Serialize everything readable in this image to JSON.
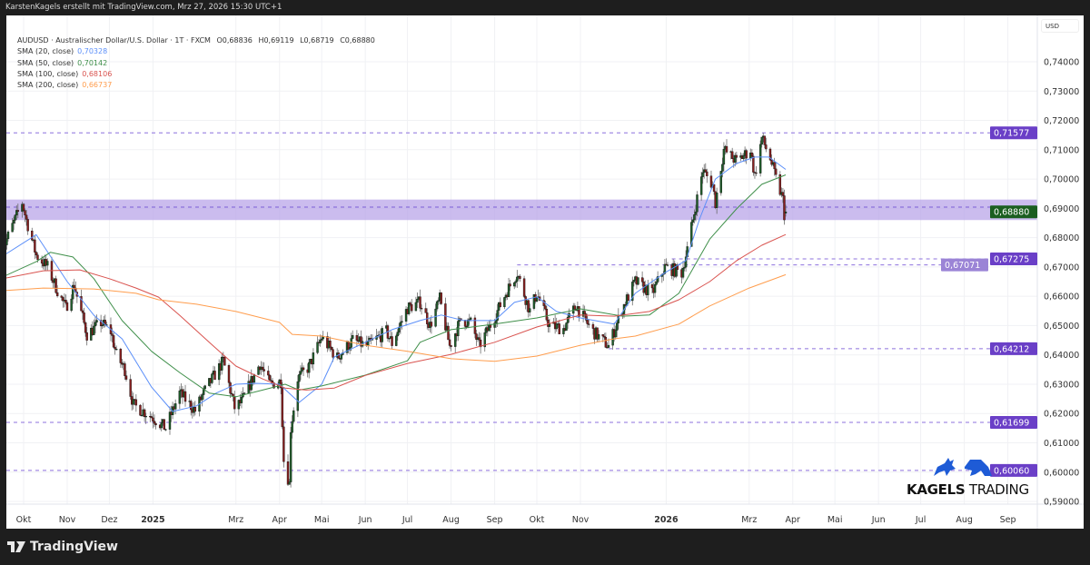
{
  "header": {
    "attribution": "KarstenKagels erstellt mit TradingView.com, Mrz 27, 2026 15:30 UTC+1"
  },
  "legend": {
    "symbol_line": "AUDUSD · Australischer Dollar/U.S. Dollar · 1T · FXCM",
    "open": "O0,68836",
    "high": "H0,69119",
    "low": "L0,68719",
    "close": "C0,68880",
    "sma": [
      {
        "label": "SMA (20, close)",
        "value": "0,70328",
        "color": "#5b8ff9"
      },
      {
        "label": "SMA (50, close)",
        "value": "0,70142",
        "color": "#3f8f4a"
      },
      {
        "label": "SMA (100, close)",
        "value": "0,68106",
        "color": "#d9534f"
      },
      {
        "label": "SMA (200, close)",
        "value": "0,66737",
        "color": "#ff9d4d"
      }
    ]
  },
  "axis": {
    "currency": "USD"
  },
  "footer": {
    "brand": "TradingView"
  },
  "watermark": {
    "bold": "KAGELS",
    "light": "TRADING",
    "color": "#1e5bd6"
  },
  "chart_data": {
    "type": "candlestick",
    "symbol": "AUDUSD",
    "timeframe": "1T",
    "last_candle": {
      "date": "2026-03-27",
      "open": 0.68836,
      "high": 0.69119,
      "low": 0.68719,
      "close": 0.6888
    },
    "ylim": [
      0.588,
      0.755
    ],
    "xlim": [
      "2024-09-14",
      "2026-09-25"
    ],
    "grid": true,
    "y_ticks": [
      "0,74000",
      "0,73000",
      "0,72000",
      "0,71000",
      "0,70000",
      "0,69000",
      "0,68000",
      "0,67000",
      "0,66000",
      "0,65000",
      "0,64000",
      "0,63000",
      "0,62000",
      "0,61000",
      "0,60000",
      "0,59000"
    ],
    "x_ticks": [
      {
        "label": "Okt",
        "date": "2024-10-01"
      },
      {
        "label": "Nov",
        "date": "2024-11-01"
      },
      {
        "label": "Dez",
        "date": "2024-12-01"
      },
      {
        "label": "2025",
        "date": "2025-01-01",
        "bold": true
      },
      {
        "label": "Mrz",
        "date": "2025-03-01"
      },
      {
        "label": "Apr",
        "date": "2025-04-01"
      },
      {
        "label": "Mai",
        "date": "2025-05-01"
      },
      {
        "label": "Jun",
        "date": "2025-06-01"
      },
      {
        "label": "Jul",
        "date": "2025-07-01"
      },
      {
        "label": "Aug",
        "date": "2025-08-01"
      },
      {
        "label": "Sep",
        "date": "2025-09-01"
      },
      {
        "label": "Okt",
        "date": "2025-10-01"
      },
      {
        "label": "Nov",
        "date": "2025-11-01"
      },
      {
        "label": "2026",
        "date": "2026-01-01",
        "bold": true
      },
      {
        "label": "Mrz",
        "date": "2026-03-01"
      },
      {
        "label": "Apr",
        "date": "2026-04-01"
      },
      {
        "label": "Mai",
        "date": "2026-05-01"
      },
      {
        "label": "Jun",
        "date": "2026-06-01"
      },
      {
        "label": "Jul",
        "date": "2026-07-01"
      },
      {
        "label": "Aug",
        "date": "2026-08-01"
      },
      {
        "label": "Sep",
        "date": "2026-09-01"
      }
    ],
    "close_path": [
      [
        "2024-09-16",
        0.676
      ],
      [
        "2024-09-23",
        0.684
      ],
      [
        "2024-09-30",
        0.692
      ],
      [
        "2024-10-03",
        0.686
      ],
      [
        "2024-10-10",
        0.674
      ],
      [
        "2024-10-18",
        0.67
      ],
      [
        "2024-10-25",
        0.662
      ],
      [
        "2024-10-31",
        0.656
      ],
      [
        "2024-11-06",
        0.664
      ],
      [
        "2024-11-08",
        0.66
      ],
      [
        "2024-11-15",
        0.647
      ],
      [
        "2024-11-25",
        0.651
      ],
      [
        "2024-12-02",
        0.648
      ],
      [
        "2024-12-06",
        0.64
      ],
      [
        "2024-12-12",
        0.635
      ],
      [
        "2024-12-18",
        0.623
      ],
      [
        "2024-12-31",
        0.619
      ],
      [
        "2025-01-10",
        0.615
      ],
      [
        "2025-01-20",
        0.627
      ],
      [
        "2025-01-31",
        0.621
      ],
      [
        "2025-02-06",
        0.627
      ],
      [
        "2025-02-20",
        0.638
      ],
      [
        "2025-02-28",
        0.622
      ],
      [
        "2025-03-05",
        0.624
      ],
      [
        "2025-03-18",
        0.637
      ],
      [
        "2025-03-25",
        0.63
      ],
      [
        "2025-04-02",
        0.631
      ],
      [
        "2025-04-04",
        0.604
      ],
      [
        "2025-04-08",
        0.596
      ],
      [
        "2025-04-09",
        0.615
      ],
      [
        "2025-04-14",
        0.632
      ],
      [
        "2025-04-22",
        0.636
      ],
      [
        "2025-05-01",
        0.646
      ],
      [
        "2025-05-12",
        0.639
      ],
      [
        "2025-05-23",
        0.645
      ],
      [
        "2025-06-02",
        0.643
      ],
      [
        "2025-06-16",
        0.648
      ],
      [
        "2025-06-20",
        0.644
      ],
      [
        "2025-07-01",
        0.656
      ],
      [
        "2025-07-10",
        0.658
      ],
      [
        "2025-07-17",
        0.65
      ],
      [
        "2025-07-24",
        0.659
      ],
      [
        "2025-07-31",
        0.643
      ],
      [
        "2025-08-08",
        0.652
      ],
      [
        "2025-08-15",
        0.651
      ],
      [
        "2025-08-21",
        0.643
      ],
      [
        "2025-09-01",
        0.653
      ],
      [
        "2025-09-10",
        0.662
      ],
      [
        "2025-09-17",
        0.668
      ],
      [
        "2025-09-26",
        0.655
      ],
      [
        "2025-10-01",
        0.661
      ],
      [
        "2025-10-10",
        0.65
      ],
      [
        "2025-10-20",
        0.649
      ],
      [
        "2025-10-29",
        0.657
      ],
      [
        "2025-11-04",
        0.652
      ],
      [
        "2025-11-10",
        0.648
      ],
      [
        "2025-11-21",
        0.643
      ],
      [
        "2025-12-01",
        0.656
      ],
      [
        "2025-12-10",
        0.665
      ],
      [
        "2025-12-22",
        0.661
      ],
      [
        "2025-12-31",
        0.67
      ],
      [
        "2026-01-12",
        0.668
      ],
      [
        "2026-01-16",
        0.676
      ],
      [
        "2026-01-22",
        0.691
      ],
      [
        "2026-01-27",
        0.703
      ],
      [
        "2026-02-03",
        0.698
      ],
      [
        "2026-02-05",
        0.692
      ],
      [
        "2026-02-11",
        0.71
      ],
      [
        "2026-02-20",
        0.706
      ],
      [
        "2026-03-02",
        0.71
      ],
      [
        "2026-03-05",
        0.701
      ],
      [
        "2026-03-10",
        0.714
      ],
      [
        "2026-03-16",
        0.707
      ],
      [
        "2026-03-20",
        0.7
      ],
      [
        "2026-03-25",
        0.693
      ],
      [
        "2026-03-26",
        0.688
      ]
    ],
    "sma_series": [
      {
        "name": "SMA (20, close)",
        "color": "#5b8ff9",
        "points": [
          [
            "2024-09-16",
            0.6737
          ],
          [
            "2024-10-10",
            0.681
          ],
          [
            "2024-11-01",
            0.665
          ],
          [
            "2024-11-20",
            0.6535
          ],
          [
            "2024-12-10",
            0.6455
          ],
          [
            "2024-12-31",
            0.629
          ],
          [
            "2025-01-15",
            0.6207
          ],
          [
            "2025-02-01",
            0.6226
          ],
          [
            "2025-02-15",
            0.627
          ],
          [
            "2025-03-01",
            0.63
          ],
          [
            "2025-03-15",
            0.6303
          ],
          [
            "2025-04-01",
            0.63
          ],
          [
            "2025-04-15",
            0.6238
          ],
          [
            "2025-05-01",
            0.63
          ],
          [
            "2025-05-10",
            0.6393
          ],
          [
            "2025-06-01",
            0.6443
          ],
          [
            "2025-06-20",
            0.6486
          ],
          [
            "2025-07-10",
            0.6517
          ],
          [
            "2025-07-25",
            0.6536
          ],
          [
            "2025-08-10",
            0.6517
          ],
          [
            "2025-09-01",
            0.6517
          ],
          [
            "2025-09-15",
            0.6579
          ],
          [
            "2025-10-01",
            0.6598
          ],
          [
            "2025-10-15",
            0.6548
          ],
          [
            "2025-11-01",
            0.6526
          ],
          [
            "2025-11-25",
            0.6505
          ],
          [
            "2025-12-10",
            0.661
          ],
          [
            "2025-12-31",
            0.668
          ],
          [
            "2026-01-15",
            0.6722
          ],
          [
            "2026-01-25",
            0.6867
          ],
          [
            "2026-02-05",
            0.7
          ],
          [
            "2026-02-20",
            0.7053
          ],
          [
            "2026-03-05",
            0.7075
          ],
          [
            "2026-03-15",
            0.7075
          ],
          [
            "2026-03-27",
            0.70328
          ]
        ]
      },
      {
        "name": "SMA (50, close)",
        "color": "#3f8f4a",
        "points": [
          [
            "2024-09-16",
            0.6666
          ],
          [
            "2024-10-10",
            0.6718
          ],
          [
            "2024-10-20",
            0.675
          ],
          [
            "2024-11-05",
            0.6734
          ],
          [
            "2024-11-20",
            0.666
          ],
          [
            "2024-12-10",
            0.6517
          ],
          [
            "2024-12-31",
            0.6412
          ],
          [
            "2025-01-20",
            0.634
          ],
          [
            "2025-02-10",
            0.627
          ],
          [
            "2025-03-01",
            0.6257
          ],
          [
            "2025-03-20",
            0.628
          ],
          [
            "2025-04-05",
            0.63
          ],
          [
            "2025-04-15",
            0.628
          ],
          [
            "2025-05-01",
            0.6294
          ],
          [
            "2025-06-01",
            0.6331
          ],
          [
            "2025-07-01",
            0.638
          ],
          [
            "2025-07-10",
            0.6443
          ],
          [
            "2025-08-01",
            0.6486
          ],
          [
            "2025-09-01",
            0.6505
          ],
          [
            "2025-10-01",
            0.6526
          ],
          [
            "2025-11-01",
            0.6557
          ],
          [
            "2025-12-01",
            0.6532
          ],
          [
            "2025-12-20",
            0.6536
          ],
          [
            "2026-01-10",
            0.661
          ],
          [
            "2026-02-01",
            0.6795
          ],
          [
            "2026-02-20",
            0.6898
          ],
          [
            "2026-03-10",
            0.6982
          ],
          [
            "2026-03-27",
            0.70142
          ]
        ]
      },
      {
        "name": "SMA (100, close)",
        "color": "#d9534f",
        "points": [
          [
            "2024-09-16",
            0.666
          ],
          [
            "2024-10-15",
            0.6687
          ],
          [
            "2024-11-10",
            0.669
          ],
          [
            "2024-12-01",
            0.666
          ],
          [
            "2024-12-20",
            0.6628
          ],
          [
            "2025-01-05",
            0.6597
          ],
          [
            "2025-01-20",
            0.6535
          ],
          [
            "2025-02-10",
            0.6443
          ],
          [
            "2025-03-01",
            0.6362
          ],
          [
            "2025-03-20",
            0.6318
          ],
          [
            "2025-04-05",
            0.6287
          ],
          [
            "2025-04-20",
            0.628
          ],
          [
            "2025-05-10",
            0.6287
          ],
          [
            "2025-06-01",
            0.633
          ],
          [
            "2025-07-01",
            0.6371
          ],
          [
            "2025-08-01",
            0.6402
          ],
          [
            "2025-09-01",
            0.6443
          ],
          [
            "2025-10-01",
            0.6495
          ],
          [
            "2025-11-01",
            0.6536
          ],
          [
            "2025-11-25",
            0.6532
          ],
          [
            "2025-12-20",
            0.6548
          ],
          [
            "2026-01-10",
            0.6588
          ],
          [
            "2026-02-01",
            0.665
          ],
          [
            "2026-02-20",
            0.6721
          ],
          [
            "2026-03-10",
            0.6774
          ],
          [
            "2026-03-27",
            0.68106
          ]
        ]
      },
      {
        "name": "SMA (200, close)",
        "color": "#ff9d4d",
        "points": [
          [
            "2024-09-16",
            0.6619
          ],
          [
            "2024-10-15",
            0.6628
          ],
          [
            "2024-11-20",
            0.6625
          ],
          [
            "2024-12-20",
            0.661
          ],
          [
            "2025-01-05",
            0.6588
          ],
          [
            "2025-02-01",
            0.6573
          ],
          [
            "2025-03-01",
            0.6548
          ],
          [
            "2025-04-01",
            0.6511
          ],
          [
            "2025-04-10",
            0.647
          ],
          [
            "2025-05-01",
            0.6464
          ],
          [
            "2025-06-01",
            0.6433
          ],
          [
            "2025-07-01",
            0.6412
          ],
          [
            "2025-08-01",
            0.6387
          ],
          [
            "2025-09-01",
            0.6378
          ],
          [
            "2025-10-01",
            0.6396
          ],
          [
            "2025-11-01",
            0.6433
          ],
          [
            "2025-11-25",
            0.6455
          ],
          [
            "2025-12-10",
            0.6464
          ],
          [
            "2026-01-10",
            0.6505
          ],
          [
            "2026-02-01",
            0.6567
          ],
          [
            "2026-03-01",
            0.6628
          ],
          [
            "2026-03-27",
            0.66737
          ]
        ]
      }
    ],
    "zone": {
      "low": 0.686,
      "high": 0.693,
      "mid": 0.6904,
      "color": "#b9a6e8"
    },
    "levels": [
      {
        "value": 0.71577,
        "label": "0,71577",
        "from": "2024-09-14",
        "color": "#6a3fc7"
      },
      {
        "value": 0.67275,
        "label": "0,67275",
        "from": "2026-01-05",
        "color": "#6a3fc7"
      },
      {
        "value": 0.67071,
        "label": "0,67071",
        "from": "2025-09-17",
        "color": "#9b84d6"
      },
      {
        "value": 0.64212,
        "label": "0,64212",
        "from": "2025-11-21",
        "color": "#6a3fc7"
      },
      {
        "value": 0.61699,
        "label": "0,61699",
        "from": "2024-09-14",
        "color": "#6a3fc7"
      },
      {
        "value": 0.6006,
        "label": "0,60060",
        "from": "2024-09-14",
        "color": "#6a3fc7"
      }
    ],
    "last_price_label": {
      "value": 0.6888,
      "label": "0,68880",
      "color": "#1b5e20"
    },
    "colors": {
      "up": "#1f5e2a",
      "down": "#8a1f1f",
      "wick": "#6b6b6b",
      "grid": "#f0f1f4"
    }
  }
}
